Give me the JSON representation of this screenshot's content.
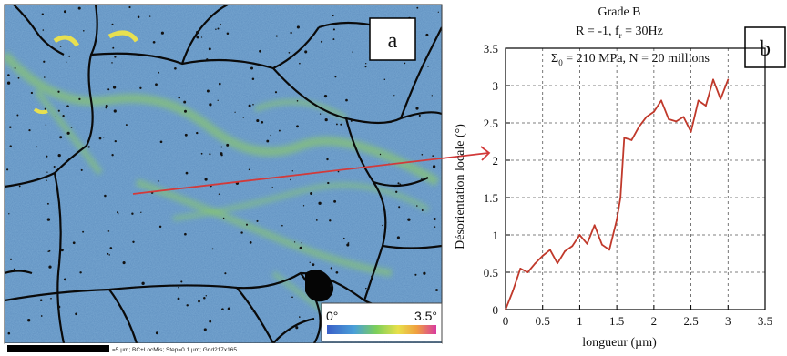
{
  "map_panel": {
    "label": "a",
    "colorbar": {
      "min_label": "0°",
      "max_label": "3.5°"
    },
    "scalebar_text": "=5 µm; BC+LocMis; Step=0.1 µm; Grid217x165"
  },
  "colors": {
    "map_base": "#5f8fc0",
    "grain_boundary": "#0a0a0a",
    "band_green": "#8fd05a",
    "band_yellow": "#e8e050",
    "arrow": "#d23a3a",
    "curve": "#c0392b"
  },
  "chart_data": {
    "type": "line",
    "panel_label": "b",
    "title_lines": [
      "Grade B",
      "R = -1, f",
      "r",
      " = 30Hz",
      "Σ",
      "0",
      " = 210 MPa, N = 20 millions"
    ],
    "xlabel": "longueur (µm)",
    "ylabel": "Désorientation locale (°)",
    "xlim": [
      0,
      3.5
    ],
    "ylim": [
      0,
      3.5
    ],
    "x_ticks": [
      "0",
      "0.5",
      "1",
      "1.5",
      "2",
      "2.5",
      "3",
      "3.5"
    ],
    "y_ticks": [
      "0",
      "0.5",
      "1",
      "1.5",
      "2",
      "2.5",
      "3",
      "3.5"
    ],
    "grid": true,
    "series": [
      {
        "x": [
          0,
          0.1,
          0.2,
          0.3,
          0.4,
          0.5,
          0.6,
          0.7,
          0.8,
          0.9,
          1.0,
          1.1,
          1.2,
          1.3,
          1.4,
          1.5,
          1.55,
          1.6,
          1.7,
          1.8,
          1.9,
          2.0,
          2.1,
          2.2,
          2.3,
          2.4,
          2.5,
          2.6,
          2.7,
          2.8,
          2.9,
          3.0
        ],
        "y": [
          0,
          0.25,
          0.55,
          0.5,
          0.62,
          0.72,
          0.8,
          0.62,
          0.78,
          0.85,
          1.0,
          0.88,
          1.13,
          0.87,
          0.8,
          1.2,
          1.5,
          2.3,
          2.27,
          2.45,
          2.58,
          2.65,
          2.8,
          2.55,
          2.52,
          2.58,
          2.38,
          2.8,
          2.73,
          3.08,
          2.82,
          3.08
        ]
      }
    ]
  }
}
